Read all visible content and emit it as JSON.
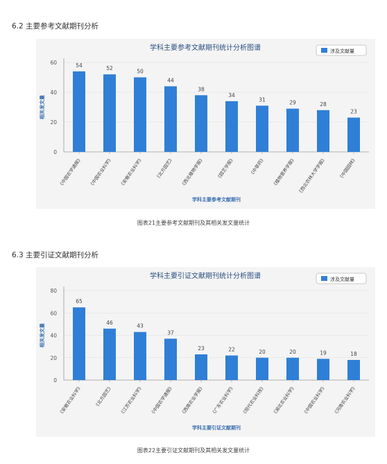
{
  "sections": [
    {
      "title": "6.2 主要参考文献期刊分析",
      "caption": "图表21主要参考文献期刊及其相关发文量统计"
    },
    {
      "title": "6.3 主要引证文献期刊分析",
      "caption": "图表22主要引证文献期刊及其相关发文量统计"
    }
  ],
  "colors": {
    "bar": "#2f7fd6",
    "panel": "#f4f4f4",
    "axis": "#999999",
    "grid": "#dddddd",
    "axis_title": "#3a6fb0"
  },
  "chart_data": [
    {
      "type": "bar",
      "title": "学科主要参考文献期刊统计分析图谱",
      "xlabel": "学科主要参考文献期刊",
      "ylabel": "相关发文量",
      "legend": {
        "label": "涉及文献量",
        "position": "top-right"
      },
      "ylim": [
        0,
        60
      ],
      "yticks": [
        0,
        20,
        40,
        60
      ],
      "grid": true,
      "categories": [
        "《中国农学通报》",
        "《中国农业科学》",
        "《安徽农业科学》",
        "《北方园艺》",
        "《西北植物学报》",
        "《园艺学报》",
        "《中草药》",
        "《植物营养学报》",
        "《西北农林大学学报》",
        "《中国园林》"
      ],
      "values": [
        54,
        52,
        50,
        44,
        38,
        34,
        31,
        29,
        28,
        23
      ]
    },
    {
      "type": "bar",
      "title": "学科主要引证文献期刊统计分析图谱",
      "xlabel": "学科主要引证文献期刊",
      "ylabel": "相关发文量",
      "legend": {
        "label": "涉及文献量",
        "position": "top-right"
      },
      "ylim": [
        0,
        80
      ],
      "yticks": [
        0,
        20,
        40,
        60,
        80
      ],
      "grid": true,
      "categories": [
        "《安徽农业科学》",
        "《北方园艺》",
        "《江苏农业科学》",
        "《中国农学通报》",
        "《西南农业学报》",
        "《广东农业科学》",
        "《现代农业科技》",
        "《湖北农业科学》",
        "《中国农业科学》",
        "《河南农业科学》"
      ],
      "values": [
        65,
        46,
        43,
        37,
        23,
        22,
        20,
        20,
        19,
        18
      ]
    }
  ]
}
